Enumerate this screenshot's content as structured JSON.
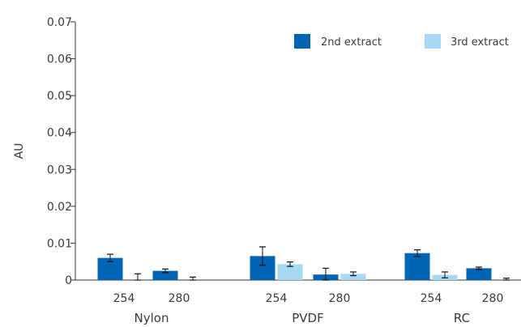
{
  "chart_data": {
    "type": "bar",
    "title": "",
    "xlabel": "",
    "ylabel": "AU",
    "ylim": [
      0,
      0.07
    ],
    "yticks": [
      0,
      0.01,
      0.02,
      0.03,
      0.04,
      0.05,
      0.06,
      0.07
    ],
    "ytick_labels": [
      "0",
      "0.01",
      "0.02",
      "0.03",
      "0.04",
      "0.05",
      "0.06",
      "0.07"
    ],
    "grid": false,
    "legend_position": "top-right",
    "groups": [
      {
        "label": "Nylon",
        "categories": [
          "254",
          "280"
        ]
      },
      {
        "label": "PVDF",
        "categories": [
          "254",
          "280"
        ]
      },
      {
        "label": "RC",
        "categories": [
          "254",
          "280"
        ]
      }
    ],
    "categories": [
      "254",
      "280",
      "254",
      "280",
      "254",
      "280"
    ],
    "series": [
      {
        "name": "2nd extract",
        "color": "#0064b4",
        "values": [
          0.006,
          0.0025,
          0.0065,
          0.0015,
          0.0073,
          0.0032
        ],
        "errors": [
          0.001,
          0.0005,
          0.0025,
          0.0017,
          0.0009,
          0.0003
        ]
      },
      {
        "name": "3rd extract",
        "color": "#a8d8f4",
        "values": [
          0.0,
          0.0,
          0.0043,
          0.0017,
          0.0014,
          0.0
        ],
        "errors": [
          0.0017,
          0.0008,
          0.0006,
          0.0005,
          0.0008,
          0.0005
        ]
      }
    ]
  }
}
